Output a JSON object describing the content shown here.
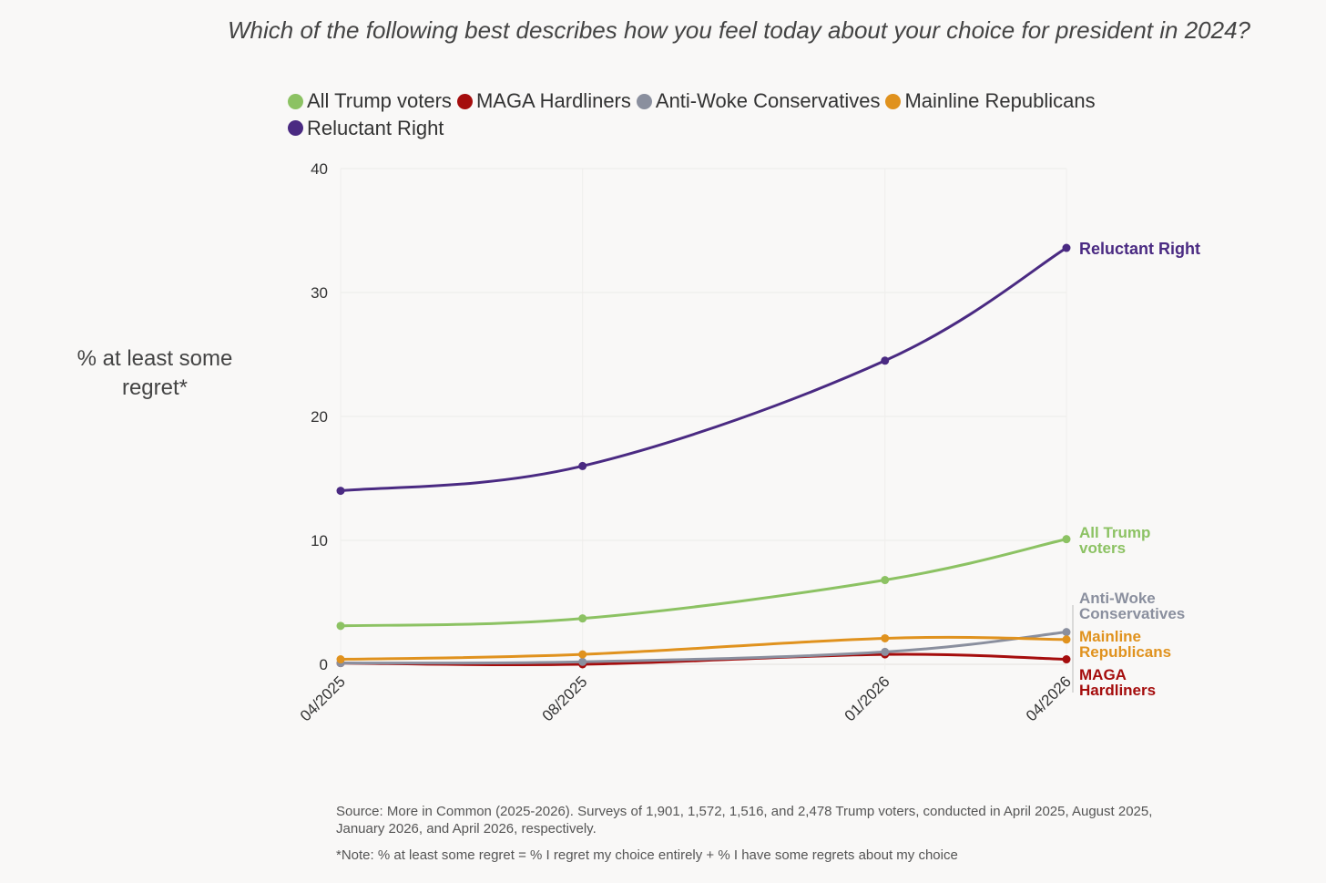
{
  "chart_data": {
    "type": "line",
    "title": "Which of the following best describes how you feel today about your choice for president in 2024?",
    "ylabel": "% at least some regret*",
    "xlabel": "",
    "x": [
      "04/2025",
      "08/2025",
      "01/2026",
      "04/2026"
    ],
    "x_months": [
      0,
      4,
      9,
      12
    ],
    "ylim": [
      0,
      40
    ],
    "yticks": [
      "0",
      "10",
      "20",
      "30",
      "40"
    ],
    "yticks_values": [
      0,
      10,
      20,
      30,
      40
    ],
    "grid": true,
    "legend_placement": "top",
    "series": [
      {
        "name": "All Trump voters",
        "end_label": [
          "All Trump",
          "voters"
        ],
        "color": "#8cc263",
        "values": [
          3.1,
          3.7,
          6.8,
          10.1
        ]
      },
      {
        "name": "MAGA Hardliners",
        "end_label": [
          "MAGA",
          "Hardliners"
        ],
        "color": "#a50d0d",
        "values": [
          0.1,
          0.0,
          0.8,
          0.4
        ]
      },
      {
        "name": "Anti-Woke Conservatives",
        "end_label": [
          "Anti-Woke",
          "Conservatives"
        ],
        "color": "#8a8f9e",
        "values": [
          0.1,
          0.2,
          1.0,
          2.6
        ]
      },
      {
        "name": "Mainline Republicans",
        "end_label": [
          "Mainline",
          "Republicans"
        ],
        "color": "#e0921e",
        "values": [
          0.4,
          0.8,
          2.1,
          2.0
        ]
      },
      {
        "name": "Reluctant Right",
        "end_label": [
          "Reluctant Right"
        ],
        "color": "#4a2a82",
        "values": [
          14.0,
          16.0,
          24.5,
          33.6
        ]
      }
    ]
  },
  "source": "Source: More in Common (2025-2026). Surveys of 1,901, 1,572, 1,516, and 2,478 Trump voters, conducted in April 2025, August 2025, January 2026, and April 2026, respectively.",
  "note": "*Note: % at least some regret = % I regret my choice entirely + % I have some regrets about my choice"
}
